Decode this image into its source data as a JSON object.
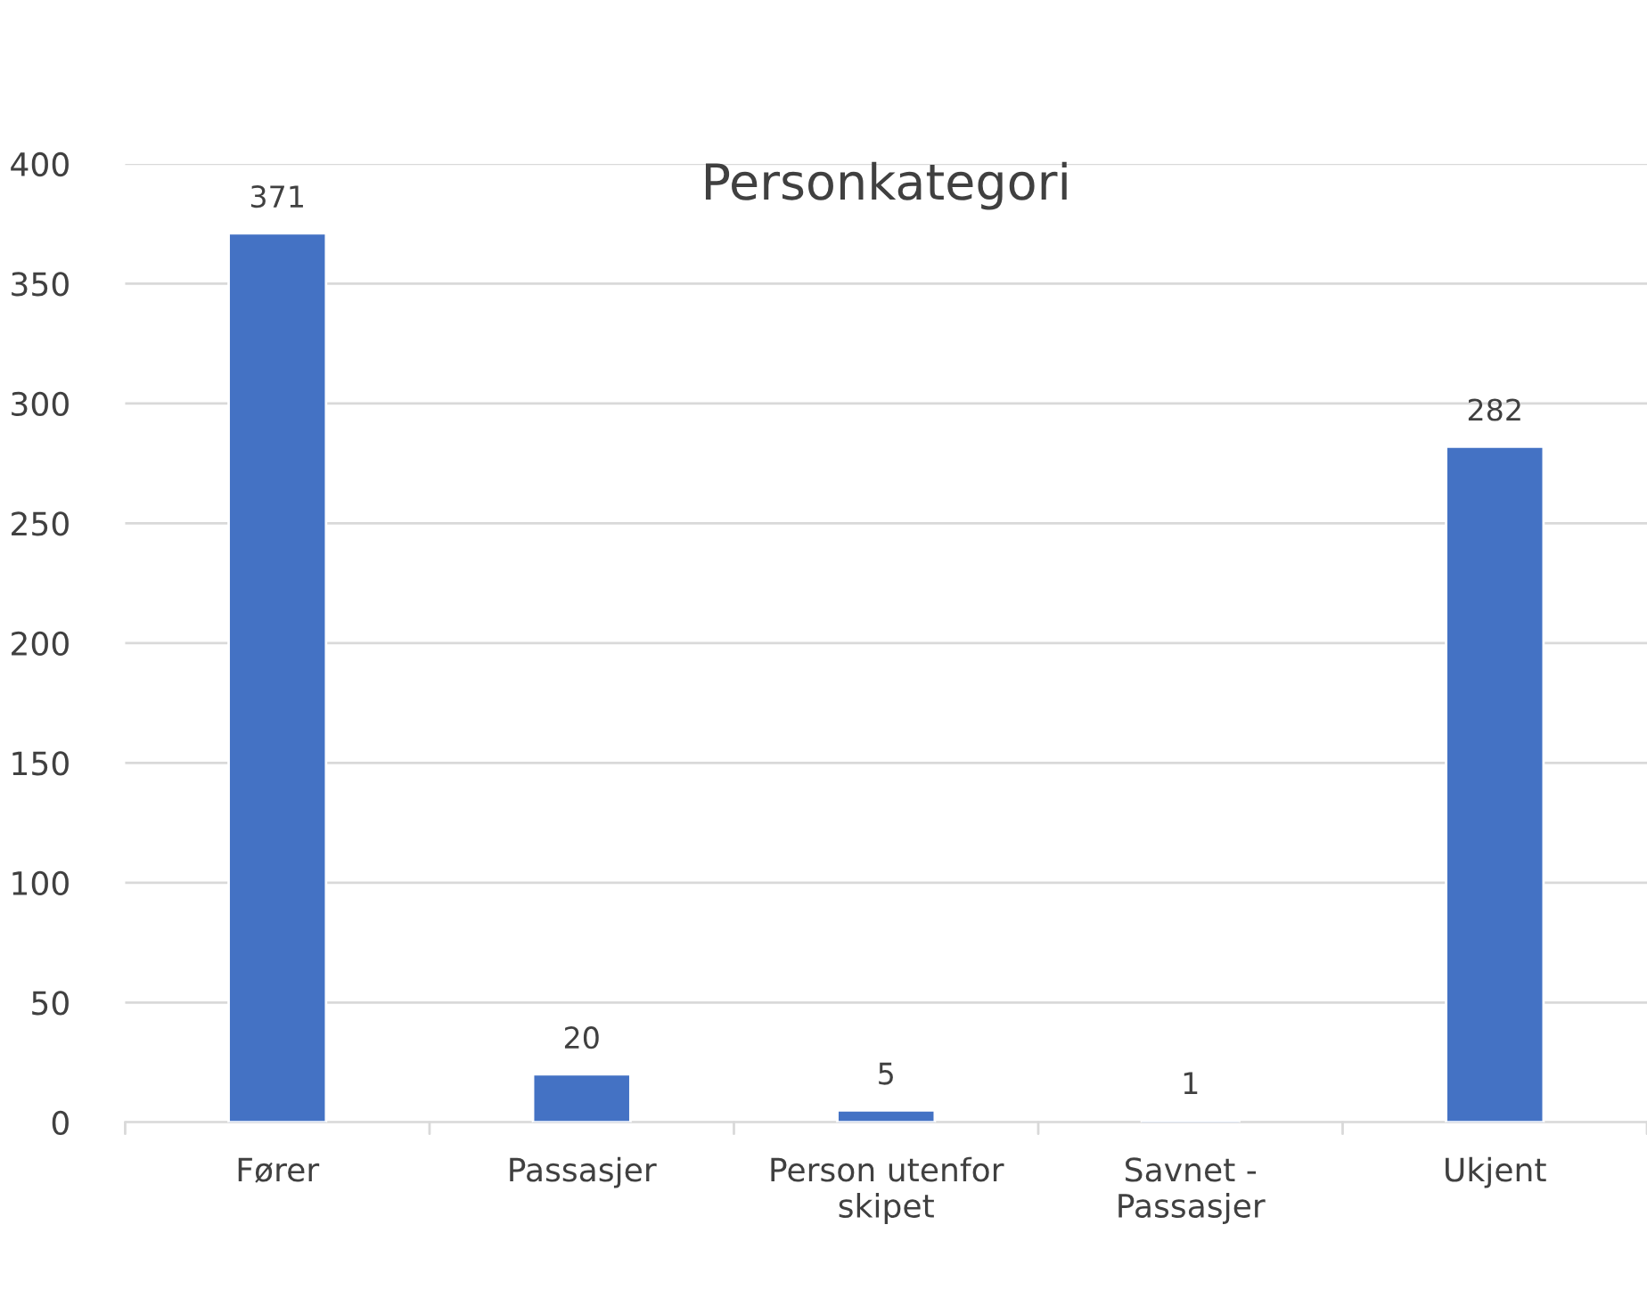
{
  "chart_data": {
    "type": "bar",
    "title": "Personkategori",
    "categories": [
      "Fører",
      "Passasjer",
      "Person utenfor\nskipet",
      "Savnet -\nPassasjer",
      "Ukjent"
    ],
    "values": [
      371,
      20,
      5,
      1,
      282
    ],
    "color": "#4472c4",
    "ylim": [
      0,
      400
    ],
    "yticks": [
      0,
      50,
      100,
      150,
      200,
      250,
      300,
      350,
      400
    ],
    "grid": "y",
    "data_labels": true
  }
}
